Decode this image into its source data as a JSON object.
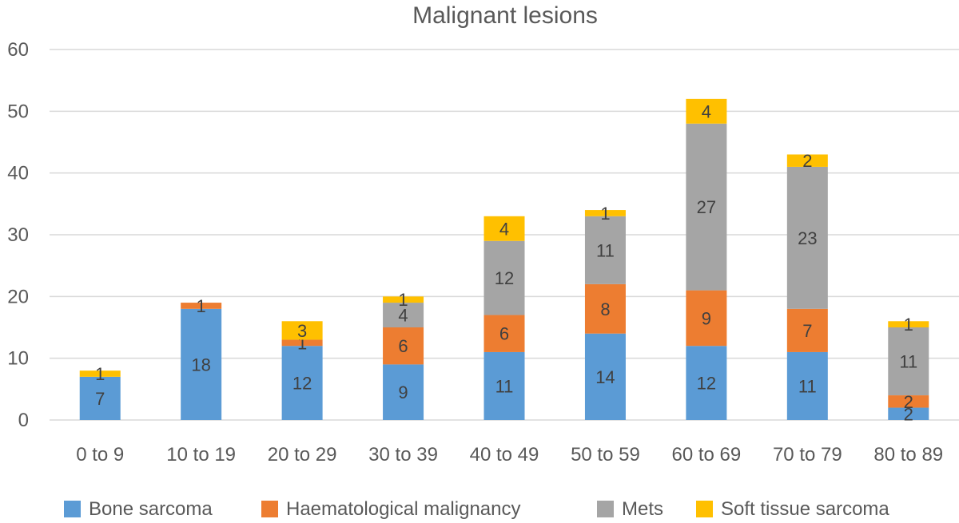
{
  "chart_data": {
    "type": "bar",
    "stacked": true,
    "title": "Malignant lesions",
    "xlabel": "",
    "ylabel": "",
    "ylim": [
      0,
      60
    ],
    "yticks": [
      0,
      10,
      20,
      30,
      40,
      50,
      60
    ],
    "grid": true,
    "legend_position": "bottom",
    "categories": [
      "0 to 9",
      "10 to 19",
      "20 to 29",
      "30 to 39",
      "40 to 49",
      "50 to 59",
      "60 to 69",
      "70 to 79",
      "80 to 89"
    ],
    "series": [
      {
        "name": "Bone sarcoma",
        "color": "#5b9bd5",
        "values": [
          7,
          18,
          12,
          9,
          11,
          14,
          12,
          11,
          2
        ]
      },
      {
        "name": "Haematological malignancy",
        "color": "#ed7d31",
        "values": [
          0,
          1,
          1,
          6,
          6,
          8,
          9,
          7,
          2
        ]
      },
      {
        "name": "Mets",
        "color": "#a5a5a5",
        "values": [
          0,
          0,
          0,
          4,
          12,
          11,
          27,
          23,
          11
        ]
      },
      {
        "name": "Soft tissue sarcoma",
        "color": "#ffc000",
        "values": [
          1,
          0,
          3,
          1,
          4,
          1,
          4,
          2,
          1
        ]
      }
    ]
  }
}
